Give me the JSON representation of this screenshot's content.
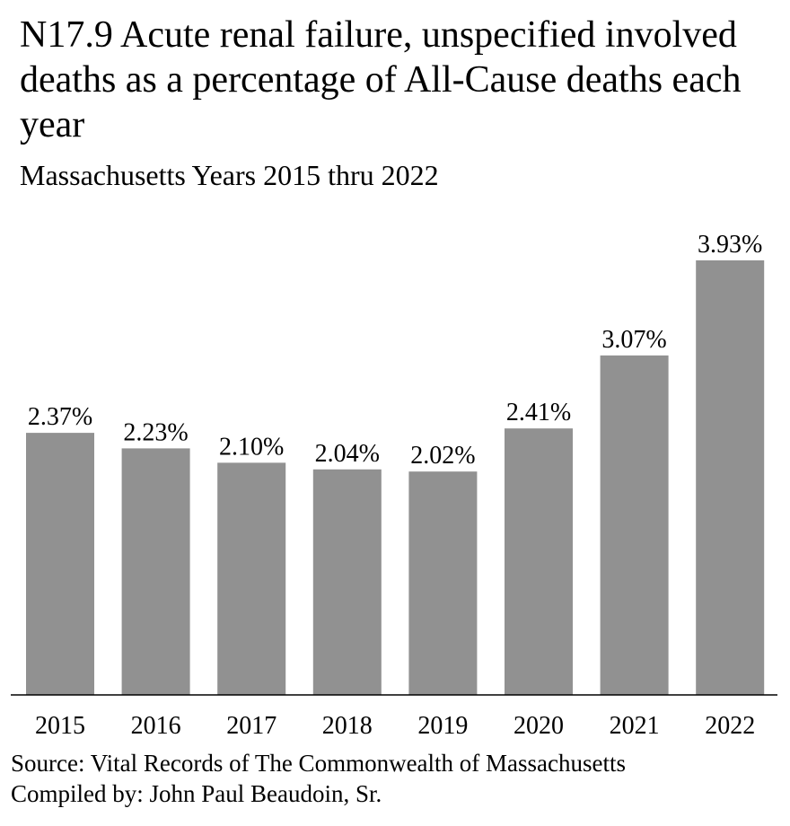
{
  "chart_data": {
    "type": "bar",
    "title": "N17.9 Acute renal failure, unspecified involved deaths as a percentage of All-Cause deaths each year",
    "subtitle": "Massachusetts Years 2015 thru 2022",
    "categories": [
      "2015",
      "2016",
      "2017",
      "2018",
      "2019",
      "2020",
      "2021",
      "2022"
    ],
    "values": [
      2.37,
      2.23,
      2.1,
      2.04,
      2.02,
      2.41,
      3.07,
      3.93
    ],
    "data_labels": [
      "2.37%",
      "2.23%",
      "2.10%",
      "2.04%",
      "2.02%",
      "2.41%",
      "3.07%",
      "3.93%"
    ],
    "ylim": [
      0,
      3.93
    ],
    "bar_color": "#919191",
    "grid": false,
    "legend": "none"
  },
  "footer": {
    "source": "Source:  Vital Records of The Commonwealth of Massachusetts",
    "compiled_by": "Compiled by:  John Paul Beaudoin, Sr."
  }
}
